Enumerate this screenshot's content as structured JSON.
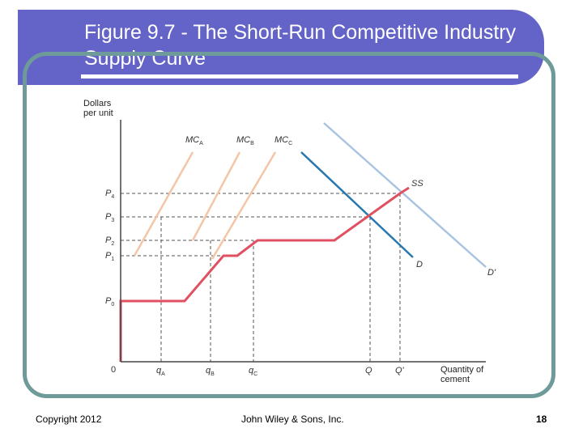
{
  "slide": {
    "title": "Figure 9.7 - The Short-Run Competitive Industry Supply Curve",
    "footer_left": "Copyright 2012",
    "footer_center": "John Wiley & Sons, Inc.",
    "page_number": "18"
  },
  "diagram": {
    "y_axis_label": [
      "Dollars",
      "per unit"
    ],
    "x_axis_label": [
      "Quantity of",
      "cement"
    ],
    "origin_label": "0",
    "price_levels": [
      {
        "base": "P",
        "sub": "4"
      },
      {
        "base": "P",
        "sub": "3"
      },
      {
        "base": "P",
        "sub": "2"
      },
      {
        "base": "P",
        "sub": "1"
      },
      {
        "base": "P",
        "sub": "0"
      }
    ],
    "quantity_levels": [
      {
        "base": "q",
        "sub": "A"
      },
      {
        "base": "q",
        "sub": "B"
      },
      {
        "base": "q",
        "sub": "C"
      },
      {
        "base": "Q",
        "sub": ""
      },
      {
        "base": "Q'",
        "sub": ""
      }
    ],
    "curve_labels": [
      {
        "base": "MC",
        "sub": "A"
      },
      {
        "base": "MC",
        "sub": "B"
      },
      {
        "base": "MC",
        "sub": "C"
      },
      {
        "base": "SS",
        "sub": ""
      },
      {
        "base": "D",
        "sub": ""
      },
      {
        "base": "D'",
        "sub": ""
      }
    ],
    "colors": {
      "mc_curves": "#f5c5a8",
      "industry_supply": "#e05060",
      "demand": "#2878b0",
      "demand_shifted": "#a8c4e0",
      "guides": "#555555",
      "axes": "#444444"
    }
  }
}
